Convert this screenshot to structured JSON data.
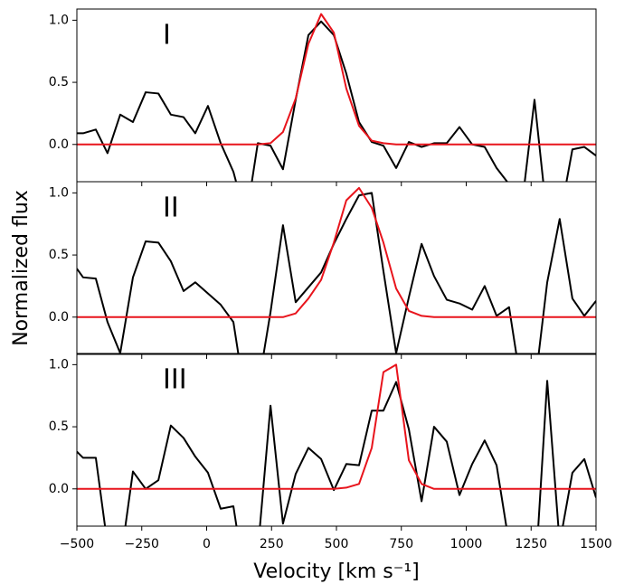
{
  "chart_data": [
    {
      "type": "line",
      "label": "I",
      "xlim": [
        -500,
        1500
      ],
      "ylim": [
        -0.3,
        1.09
      ],
      "yticks": [
        {
          "value": 0,
          "label": "0.0"
        },
        {
          "value": 0.5,
          "label": "0.5"
        },
        {
          "value": 1,
          "label": "1.0"
        }
      ],
      "x": [
        -500,
        -476,
        -427,
        -382,
        -333,
        -284,
        -235,
        -186,
        -138,
        -89,
        -44,
        5,
        54,
        103,
        152,
        197,
        246,
        294,
        343,
        392,
        441,
        490,
        538,
        587,
        636,
        681,
        730,
        779,
        828,
        876,
        925,
        974,
        1023,
        1071,
        1117,
        1165,
        1214,
        1263,
        1312,
        1360,
        1409,
        1455,
        1500
      ],
      "series": [
        {
          "color": "#000000",
          "values": [
            0.09,
            0.09,
            0.12,
            -0.07,
            0.24,
            0.18,
            0.42,
            0.41,
            0.24,
            0.22,
            0.09,
            0.31,
            0.01,
            -0.22,
            -0.6,
            0.01,
            -0.01,
            -0.2,
            0.36,
            0.88,
            0.99,
            0.88,
            0.57,
            0.18,
            0.02,
            -0.01,
            -0.19,
            0.02,
            -0.02,
            0.01,
            0.01,
            0.14,
            0,
            -0.02,
            -0.19,
            -0.32,
            -0.5,
            0.36,
            -0.6,
            -0.6,
            -0.04,
            -0.02,
            -0.09
          ]
        },
        {
          "color": "#e8141c",
          "values": [
            0,
            0,
            0,
            0,
            0,
            0,
            0,
            0,
            0,
            0,
            0,
            0,
            0,
            0,
            0,
            0,
            0.01,
            0.1,
            0.37,
            0.81,
            1.05,
            0.9,
            0.45,
            0.15,
            0.03,
            0.01,
            0,
            0,
            0,
            0,
            0,
            0,
            0,
            0,
            0,
            0,
            0,
            0,
            0,
            0,
            0,
            0,
            0
          ]
        }
      ]
    },
    {
      "type": "line",
      "label": "II",
      "ylabel": "Normalized flux",
      "xlim": [
        -500,
        1500
      ],
      "ylim": [
        -0.3,
        1.09
      ],
      "yticks": [
        {
          "value": 0,
          "label": "0.0"
        },
        {
          "value": 0.5,
          "label": "0.5"
        },
        {
          "value": 1,
          "label": "1.0"
        }
      ],
      "x": [
        -500,
        -476,
        -427,
        -382,
        -333,
        -284,
        -235,
        -186,
        -138,
        -89,
        -44,
        5,
        54,
        103,
        152,
        197,
        246,
        294,
        343,
        392,
        441,
        490,
        538,
        587,
        636,
        681,
        730,
        779,
        828,
        876,
        925,
        974,
        1023,
        1071,
        1117,
        1165,
        1214,
        1263,
        1312,
        1360,
        1409,
        1455,
        1500
      ],
      "series": [
        {
          "color": "#000000",
          "values": [
            0.39,
            0.32,
            0.31,
            -0.04,
            -0.29,
            0.32,
            0.61,
            0.6,
            0.45,
            0.21,
            0.28,
            0.19,
            0.1,
            -0.04,
            -0.7,
            -0.58,
            0.04,
            0.74,
            0.12,
            0.24,
            0.36,
            0.59,
            0.79,
            0.98,
            1.0,
            0.37,
            -0.29,
            0.16,
            0.59,
            0.33,
            0.14,
            0.11,
            0.06,
            0.25,
            0.01,
            0.08,
            -0.58,
            -0.58,
            0.28,
            0.79,
            0.15,
            0.01,
            0.13
          ]
        },
        {
          "color": "#e8141c",
          "values": [
            0,
            0,
            0,
            0,
            0,
            0,
            0,
            0,
            0,
            0,
            0,
            0,
            0,
            0,
            0,
            0,
            0,
            0,
            0.03,
            0.15,
            0.3,
            0.6,
            0.94,
            1.04,
            0.88,
            0.6,
            0.23,
            0.05,
            0.01,
            0,
            0,
            0,
            0,
            0,
            0,
            0,
            0,
            0,
            0,
            0,
            0,
            0,
            0
          ]
        }
      ]
    },
    {
      "type": "line",
      "label": "III",
      "xlabel": "Velocity [km s⁻¹]",
      "xlim": [
        -500,
        1500
      ],
      "ylim": [
        -0.3,
        1.09
      ],
      "xticks": [
        {
          "value": -500,
          "label": "−500"
        },
        {
          "value": -250,
          "label": "−250"
        },
        0,
        250,
        500,
        750,
        1000,
        1250,
        1500
      ],
      "yticks": [
        {
          "value": 0,
          "label": "0.0"
        },
        {
          "value": 0.5,
          "label": "0.5"
        },
        {
          "value": 1,
          "label": "1.0"
        }
      ],
      "x": [
        -500,
        -476,
        -427,
        -382,
        -333,
        -284,
        -235,
        -186,
        -138,
        -89,
        -44,
        5,
        54,
        103,
        152,
        197,
        246,
        294,
        343,
        392,
        441,
        490,
        538,
        587,
        636,
        681,
        730,
        779,
        828,
        876,
        925,
        974,
        1023,
        1071,
        1117,
        1165,
        1214,
        1263,
        1312,
        1360,
        1409,
        1455,
        1500
      ],
      "series": [
        {
          "color": "#000000",
          "values": [
            0.3,
            0.25,
            0.25,
            -0.45,
            -0.6,
            0.14,
            0,
            0.07,
            0.51,
            0.41,
            0.26,
            0.13,
            -0.16,
            -0.14,
            -0.8,
            -0.5,
            0.67,
            -0.28,
            0.12,
            0.33,
            0.24,
            -0.01,
            0.2,
            0.19,
            0.63,
            0.63,
            0.86,
            0.48,
            -0.1,
            0.5,
            0.38,
            -0.05,
            0.2,
            0.39,
            0.19,
            -0.44,
            -0.8,
            -0.8,
            0.87,
            -0.44,
            0.13,
            0.24,
            -0.07
          ]
        },
        {
          "color": "#e8141c",
          "values": [
            0,
            0,
            0,
            0,
            0,
            0,
            0,
            0,
            0,
            0,
            0,
            0,
            0,
            0,
            0,
            0,
            0,
            0,
            0,
            0,
            0,
            0,
            0.01,
            0.04,
            0.33,
            0.94,
            1.0,
            0.23,
            0.04,
            0,
            0,
            0,
            0,
            0,
            0,
            0,
            0,
            0,
            0,
            0,
            0,
            0,
            0
          ]
        }
      ]
    }
  ]
}
